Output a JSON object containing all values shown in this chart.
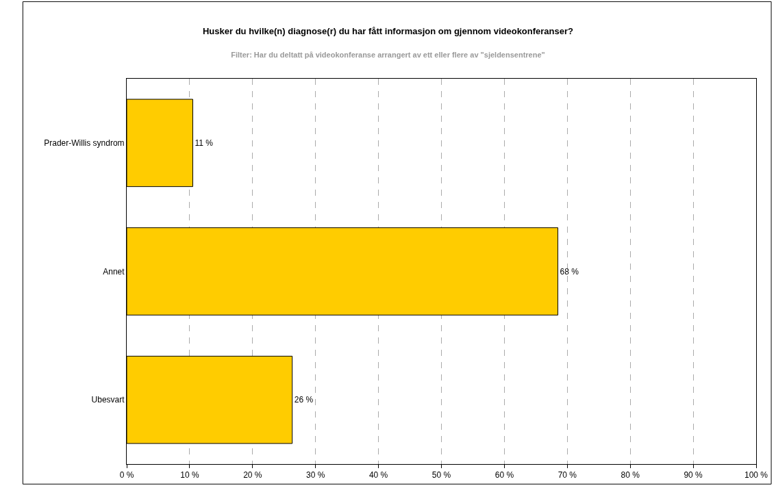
{
  "chart_data": {
    "type": "bar",
    "orientation": "horizontal",
    "title": "Husker du hvilke(n) diagnose(r) du har fått informasjon om gjennom videokonferanser?",
    "subtitle": "Filter: Har du deltatt på videokonferanse arrangert av ett eller flere av \"sjeldensentrene\"",
    "categories": [
      "Prader-Willis syndrom",
      "Annet",
      "Ubesvart"
    ],
    "values": [
      10.5,
      68.5,
      26.3
    ],
    "value_labels": [
      "11 %",
      "68 %",
      "26 %"
    ],
    "color": "#ffcc00",
    "xlim": [
      0,
      100
    ],
    "xticks": [
      {
        "value": 0,
        "label": "0 %"
      },
      {
        "value": 10,
        "label": "10 %"
      },
      {
        "value": 20,
        "label": "20 %"
      },
      {
        "value": 30,
        "label": "30 %"
      },
      {
        "value": 40,
        "label": "40 %"
      },
      {
        "value": 50,
        "label": "50 %"
      },
      {
        "value": 60,
        "label": "60 %"
      },
      {
        "value": 70,
        "label": "70 %"
      },
      {
        "value": 80,
        "label": "80 %"
      },
      {
        "value": 90,
        "label": "90 %"
      },
      {
        "value": 100,
        "label": "100 %"
      }
    ],
    "grid": "x",
    "legend": false
  }
}
